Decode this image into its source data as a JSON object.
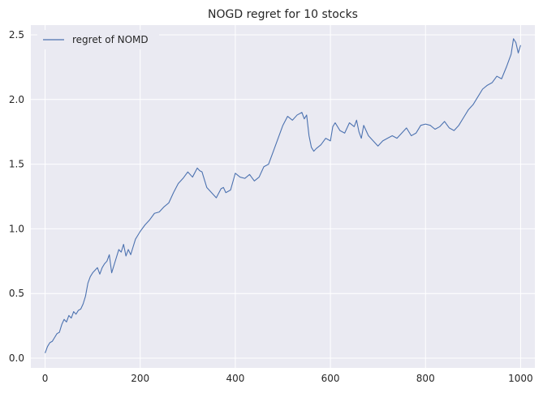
{
  "chart_data": {
    "type": "line",
    "title": "NOGD regret for 10 stocks",
    "xlabel": "",
    "ylabel": "",
    "xlim": [
      -30,
      1030
    ],
    "ylim": [
      -0.075,
      2.575
    ],
    "xticks": [
      0,
      200,
      400,
      600,
      800,
      1000
    ],
    "yticks": [
      0.0,
      0.5,
      1.0,
      1.5,
      2.0,
      2.5
    ],
    "xtick_labels": [
      "0",
      "200",
      "400",
      "600",
      "800",
      "1000"
    ],
    "ytick_labels": [
      "0.0",
      "0.5",
      "1.0",
      "1.5",
      "2.0",
      "2.5"
    ],
    "grid": true,
    "legend_position": "upper-left",
    "series": [
      {
        "name": "regret of NOMD",
        "color": "#4c72b0",
        "x": [
          0,
          5,
          10,
          15,
          20,
          25,
          30,
          35,
          40,
          45,
          50,
          55,
          60,
          65,
          70,
          75,
          80,
          85,
          90,
          95,
          100,
          105,
          110,
          115,
          120,
          125,
          130,
          135,
          140,
          145,
          150,
          155,
          160,
          165,
          170,
          175,
          180,
          185,
          190,
          195,
          200,
          210,
          220,
          230,
          240,
          250,
          260,
          270,
          280,
          290,
          300,
          310,
          320,
          325,
          330,
          340,
          350,
          360,
          370,
          375,
          380,
          390,
          400,
          410,
          420,
          430,
          440,
          450,
          460,
          470,
          480,
          490,
          500,
          510,
          520,
          530,
          540,
          545,
          550,
          555,
          560,
          565,
          570,
          580,
          590,
          600,
          605,
          610,
          620,
          630,
          640,
          650,
          655,
          660,
          665,
          670,
          680,
          690,
          700,
          710,
          720,
          730,
          740,
          750,
          760,
          770,
          780,
          790,
          800,
          810,
          820,
          830,
          840,
          850,
          860,
          870,
          880,
          890,
          900,
          910,
          920,
          930,
          940,
          950,
          960,
          970,
          975,
          980,
          985,
          990,
          995,
          1000
        ],
        "y": [
          0.04,
          0.09,
          0.12,
          0.13,
          0.16,
          0.19,
          0.2,
          0.26,
          0.3,
          0.28,
          0.33,
          0.31,
          0.36,
          0.34,
          0.37,
          0.38,
          0.42,
          0.48,
          0.58,
          0.63,
          0.66,
          0.68,
          0.7,
          0.65,
          0.7,
          0.73,
          0.75,
          0.8,
          0.66,
          0.72,
          0.78,
          0.84,
          0.82,
          0.88,
          0.79,
          0.84,
          0.8,
          0.86,
          0.92,
          0.95,
          0.98,
          1.03,
          1.07,
          1.12,
          1.13,
          1.17,
          1.2,
          1.28,
          1.35,
          1.39,
          1.44,
          1.4,
          1.47,
          1.45,
          1.44,
          1.32,
          1.28,
          1.24,
          1.31,
          1.32,
          1.28,
          1.3,
          1.43,
          1.4,
          1.39,
          1.42,
          1.37,
          1.4,
          1.48,
          1.5,
          1.6,
          1.7,
          1.8,
          1.87,
          1.84,
          1.88,
          1.9,
          1.85,
          1.88,
          1.72,
          1.63,
          1.6,
          1.62,
          1.65,
          1.7,
          1.68,
          1.79,
          1.82,
          1.76,
          1.74,
          1.82,
          1.79,
          1.84,
          1.75,
          1.7,
          1.8,
          1.72,
          1.68,
          1.64,
          1.68,
          1.7,
          1.72,
          1.7,
          1.74,
          1.78,
          1.72,
          1.74,
          1.8,
          1.81,
          1.8,
          1.77,
          1.79,
          1.83,
          1.78,
          1.76,
          1.8,
          1.86,
          1.92,
          1.96,
          2.02,
          2.08,
          2.11,
          2.13,
          2.18,
          2.16,
          2.25,
          2.3,
          2.35,
          2.47,
          2.44,
          2.36,
          2.42
        ]
      }
    ]
  }
}
